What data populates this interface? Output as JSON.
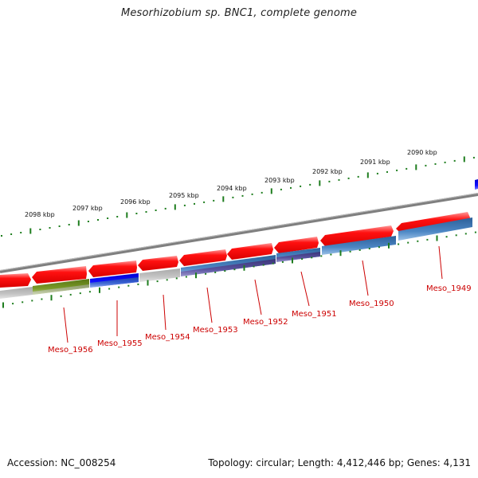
{
  "title": "Mesorhizobium sp. BNC1, complete genome",
  "accession": "Accession: NC_008254",
  "summary": "Topology: circular; Length: 4,412,446 bp; Genes: 4,131",
  "colors": {
    "backbone": "#7f7f7f",
    "tick": "#1e7d1e",
    "gene_label": "#cc0000",
    "forward_gene": "#ee0000",
    "blue_gene": "#3a72b0",
    "purple_gene": "#4f4a8c",
    "olive_gene": "#6b8c1a",
    "bright_blue_gene": "#0000ee",
    "grey_gene": "#b8b8b8"
  },
  "scale_labels": [
    "2090 kbp",
    "2091 kbp",
    "2092 kbp",
    "2093 kbp",
    "2094 kbp",
    "2095 kbp",
    "2096 kbp",
    "2097 kbp",
    "2098 kbp"
  ],
  "gene_labels": [
    "Meso_1949",
    "Meso_1950",
    "Meso_1951",
    "Meso_1952",
    "Meso_1953",
    "Meso_1954",
    "Meso_1955",
    "Meso_1956"
  ]
}
